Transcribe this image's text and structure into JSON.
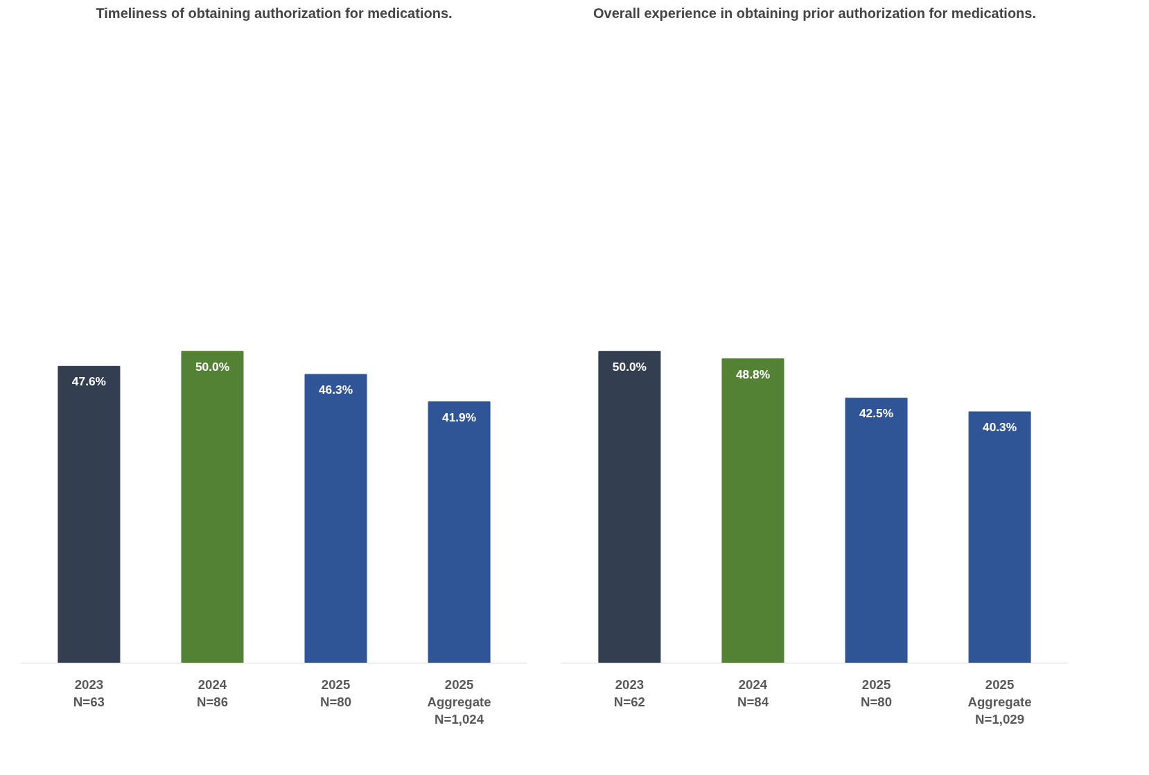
{
  "chart_data": [
    {
      "type": "bar",
      "title": "Timeliness of obtaining authorization for medications.",
      "categories": [
        "2023\nN=63",
        "2024\nN=86",
        "2025\nN=80",
        "2025\nAggregate\nN=1,024"
      ],
      "values": [
        47.6,
        50.0,
        46.3,
        41.9
      ],
      "colors": [
        "#333f50",
        "#548235",
        "#2f5597",
        "#2f5597"
      ],
      "value_labels": [
        "47.6%",
        "50.0%",
        "46.3%",
        "41.9%"
      ],
      "tick_labels": "x"
    },
    {
      "type": "bar",
      "title": "Overall experience in obtaining prior authorization for medications.",
      "categories": [
        "2023\nN=62",
        "2024\nN=84",
        "2025\nN=80",
        "2025\nAggregate\nN=1,029"
      ],
      "values": [
        50.0,
        48.8,
        42.5,
        40.3
      ],
      "colors": [
        "#333f50",
        "#548235",
        "#2f5597",
        "#2f5597"
      ],
      "value_labels": [
        "50.0%",
        "48.8%",
        "42.5%",
        "40.3%"
      ],
      "tick_labels": "x"
    }
  ]
}
